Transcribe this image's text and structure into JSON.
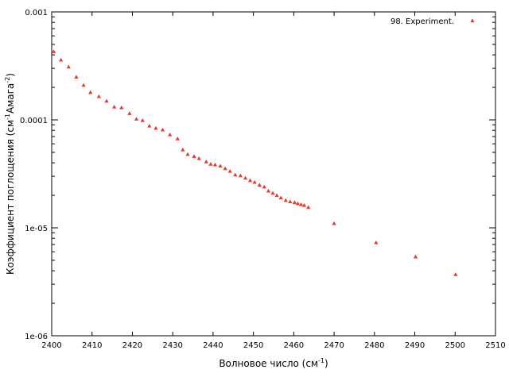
{
  "chart_data": {
    "type": "scatter",
    "xlabel": "Волновое число (см",
    "xlabel_sup": "-1",
    "xlabel_tail": ")",
    "ylabel_parts": [
      {
        "t": "Коэффициент поглощения (см",
        "sup": false
      },
      {
        "t": "-1",
        "sup": true
      },
      {
        "t": "Амага",
        "sup": false
      },
      {
        "t": "-2",
        "sup": true
      },
      {
        "t": ")",
        "sup": false
      }
    ],
    "xlim": [
      2400,
      2510
    ],
    "ylim": [
      1e-06,
      0.001
    ],
    "yscale": "log",
    "x_ticks": [
      "2400",
      "2410",
      "2420",
      "2430",
      "2440",
      "2450",
      "2460",
      "2470",
      "2480",
      "2490",
      "2500",
      "2510"
    ],
    "y_ticks": [
      {
        "value": 0.001,
        "label": "0.001"
      },
      {
        "value": 0.0001,
        "label": "0.0001"
      },
      {
        "value": 1e-05,
        "label": "1e-05"
      },
      {
        "value": 1e-06,
        "label": "1e-06"
      }
    ],
    "grid": false,
    "legend_position": "top-right",
    "series": [
      {
        "name": "98. Experiment.",
        "color": "#e8392a",
        "marker": "triangle",
        "x": [
          2400.5,
          2402.3,
          2404.2,
          2406.1,
          2407.9,
          2409.6,
          2411.7,
          2413.6,
          2415.5,
          2417.3,
          2419.3,
          2421.0,
          2422.5,
          2424.2,
          2425.8,
          2427.5,
          2429.3,
          2431.2,
          2432.5,
          2433.7,
          2435.3,
          2436.5,
          2438.3,
          2439.4,
          2440.5,
          2441.8,
          2443.0,
          2444.2,
          2445.5,
          2446.8,
          2448.0,
          2449.2,
          2450.3,
          2451.5,
          2452.7,
          2453.7,
          2454.8,
          2455.8,
          2456.8,
          2458.0,
          2459.1,
          2460.2,
          2461.0,
          2461.8,
          2462.6,
          2463.6,
          2470.0,
          2480.4,
          2490.2,
          2500.1
        ],
        "y": [
          0.00043,
          0.00036,
          0.00031,
          0.00025,
          0.00021,
          0.00018,
          0.000165,
          0.00015,
          0.000132,
          0.00013,
          0.000115,
          0.000102,
          9.9e-05,
          8.8e-05,
          8.4e-05,
          8.1e-05,
          7.3e-05,
          6.7e-05,
          5.3e-05,
          4.8e-05,
          4.6e-05,
          4.4e-05,
          4.1e-05,
          3.9e-05,
          3.85e-05,
          3.75e-05,
          3.55e-05,
          3.35e-05,
          3.1e-05,
          3.05e-05,
          2.9e-05,
          2.75e-05,
          2.65e-05,
          2.5e-05,
          2.4e-05,
          2.2e-05,
          2.1e-05,
          2e-05,
          1.9e-05,
          1.8e-05,
          1.75e-05,
          1.72e-05,
          1.68e-05,
          1.65e-05,
          1.62e-05,
          1.55e-05,
          1.1e-05,
          7.3e-06,
          5.4e-06,
          3.7e-06
        ]
      }
    ]
  }
}
